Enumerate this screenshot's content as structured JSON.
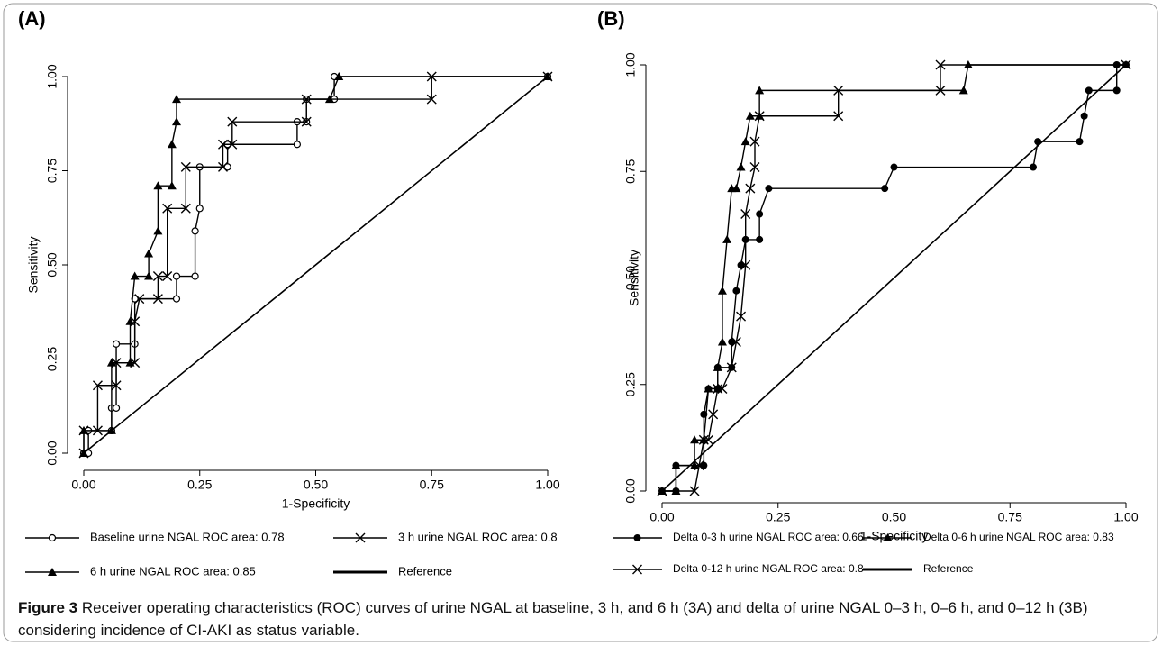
{
  "chart_data": [
    {
      "type": "line",
      "title": "(A)",
      "xlabel": "1-Specificity",
      "ylabel": "Sensitivity",
      "xlim": [
        0,
        1
      ],
      "ylim": [
        0,
        1
      ],
      "xticks": [
        {
          "value": 0,
          "label": "0.00"
        },
        {
          "value": 0.25,
          "label": "0.25"
        },
        {
          "value": 0.5,
          "label": "0.50"
        },
        {
          "value": 0.75,
          "label": "0.75"
        },
        {
          "value": 1,
          "label": "1.00"
        }
      ],
      "yticks": [
        {
          "value": 0,
          "label": "0.00"
        },
        {
          "value": 0.25,
          "label": "0.25"
        },
        {
          "value": 0.5,
          "label": "0.50"
        },
        {
          "value": 0.75,
          "label": "0.75"
        },
        {
          "value": 1,
          "label": "1.00"
        }
      ],
      "series": [
        {
          "name": "Baseline urine NGAL ROC area: 0.78",
          "color": "#000000",
          "marker": "circle",
          "x": [
            0,
            0.01,
            0.01,
            0.06,
            0.06,
            0.07,
            0.07,
            0.11,
            0.11,
            0.2,
            0.2,
            0.24,
            0.24,
            0.25,
            0.25,
            0.31,
            0.31,
            0.46,
            0.46,
            0.48,
            0.48,
            0.54,
            0.54,
            1
          ],
          "values": [
            0,
            0,
            0.06,
            0.06,
            0.12,
            0.12,
            0.29,
            0.29,
            0.41,
            0.41,
            0.47,
            0.47,
            0.59,
            0.65,
            0.76,
            0.76,
            0.82,
            0.82,
            0.88,
            0.88,
            0.94,
            0.94,
            1,
            1
          ]
        },
        {
          "name": "3 h urine NGAL ROC area: 0.8",
          "color": "#000000",
          "marker": "x",
          "x": [
            0,
            0,
            0.03,
            0.03,
            0.07,
            0.07,
            0.11,
            0.11,
            0.12,
            0.16,
            0.16,
            0.18,
            0.18,
            0.22,
            0.22,
            0.3,
            0.3,
            0.32,
            0.32,
            0.48,
            0.48,
            0.75,
            0.75,
            1
          ],
          "values": [
            0,
            0.06,
            0.06,
            0.18,
            0.18,
            0.24,
            0.24,
            0.35,
            0.41,
            0.41,
            0.47,
            0.47,
            0.65,
            0.65,
            0.76,
            0.76,
            0.82,
            0.82,
            0.88,
            0.88,
            0.94,
            0.94,
            1,
            1
          ]
        },
        {
          "name": "6 h urine NGAL ROC area: 0.85",
          "color": "#000000",
          "marker": "triangle",
          "x": [
            0,
            0,
            0.06,
            0.06,
            0.1,
            0.1,
            0.11,
            0.14,
            0.14,
            0.16,
            0.16,
            0.19,
            0.19,
            0.2,
            0.2,
            0.53,
            0.55,
            1
          ],
          "values": [
            0,
            0.06,
            0.06,
            0.24,
            0.24,
            0.35,
            0.47,
            0.47,
            0.53,
            0.59,
            0.71,
            0.71,
            0.82,
            0.88,
            0.94,
            0.94,
            1,
            1
          ]
        },
        {
          "name": "Reference",
          "color": "#000000",
          "marker": "none",
          "x": [
            0,
            1
          ],
          "values": [
            0,
            1
          ]
        }
      ]
    },
    {
      "type": "line",
      "title": "(B)",
      "xlabel": "1-Specificity",
      "ylabel": "Sensitivity",
      "xlim": [
        0,
        1
      ],
      "ylim": [
        0,
        1
      ],
      "xticks": [
        {
          "value": 0,
          "label": "0.00"
        },
        {
          "value": 0.25,
          "label": "0.25"
        },
        {
          "value": 0.5,
          "label": "0.50"
        },
        {
          "value": 0.75,
          "label": "0.75"
        },
        {
          "value": 1,
          "label": "1.00"
        }
      ],
      "yticks": [
        {
          "value": 0,
          "label": "0.00"
        },
        {
          "value": 0.25,
          "label": "0.25"
        },
        {
          "value": 0.5,
          "label": "0.50"
        },
        {
          "value": 0.75,
          "label": "0.75"
        },
        {
          "value": 1,
          "label": "1.00"
        }
      ],
      "series": [
        {
          "name": "Delta 0-3 h urine NGAL ROC area: 0.66",
          "color": "#000000",
          "marker": "dot",
          "x": [
            0,
            0.03,
            0.03,
            0.09,
            0.09,
            0.1,
            0.12,
            0.12,
            0.15,
            0.15,
            0.16,
            0.17,
            0.18,
            0.21,
            0.21,
            0.23,
            0.48,
            0.5,
            0.8,
            0.81,
            0.9,
            0.91,
            0.92,
            0.98,
            0.98,
            1
          ],
          "values": [
            0,
            0,
            0.06,
            0.06,
            0.18,
            0.24,
            0.24,
            0.29,
            0.29,
            0.35,
            0.47,
            0.53,
            0.59,
            0.59,
            0.65,
            0.71,
            0.71,
            0.76,
            0.76,
            0.82,
            0.82,
            0.88,
            0.94,
            0.94,
            1,
            1
          ]
        },
        {
          "name": "Delta 0-6 h urine NGAL ROC area: 0.83",
          "color": "#000000",
          "marker": "triangle",
          "x": [
            0,
            0.03,
            0.03,
            0.07,
            0.07,
            0.09,
            0.1,
            0.12,
            0.12,
            0.13,
            0.13,
            0.14,
            0.15,
            0.16,
            0.17,
            0.18,
            0.19,
            0.21,
            0.21,
            0.65,
            0.66,
            1
          ],
          "values": [
            0,
            0,
            0.06,
            0.06,
            0.12,
            0.12,
            0.24,
            0.24,
            0.29,
            0.35,
            0.47,
            0.59,
            0.71,
            0.71,
            0.76,
            0.82,
            0.88,
            0.88,
            0.94,
            0.94,
            1,
            1
          ]
        },
        {
          "name": "Delta 0-12 h urine NGAL ROC area: 0.8",
          "color": "#000000",
          "marker": "x",
          "x": [
            0,
            0.07,
            0.08,
            0.09,
            0.1,
            0.11,
            0.12,
            0.13,
            0.15,
            0.16,
            0.17,
            0.18,
            0.18,
            0.19,
            0.2,
            0.2,
            0.21,
            0.38,
            0.38,
            0.6,
            0.6,
            1
          ],
          "values": [
            0,
            0,
            0.06,
            0.12,
            0.12,
            0.18,
            0.24,
            0.24,
            0.29,
            0.35,
            0.41,
            0.53,
            0.65,
            0.71,
            0.76,
            0.82,
            0.88,
            0.88,
            0.94,
            0.94,
            1,
            1
          ]
        },
        {
          "name": "Reference",
          "color": "#000000",
          "marker": "none",
          "x": [
            0,
            1
          ],
          "values": [
            0,
            1
          ]
        }
      ]
    }
  ],
  "caption": {
    "label": "Figure 3",
    "text": "Receiver operating characteristics (ROC) curves of urine NGAL at baseline, 3 h, and 6 h (3A) and delta of urine NGAL 0–3 h, 0–6 h, and 0–12 h (3B) considering incidence of CI-AKI as status variable."
  }
}
